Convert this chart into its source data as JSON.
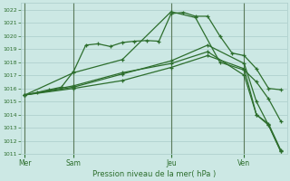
{
  "background_color": "#cce8e4",
  "grid_color": "#aaccca",
  "line_color": "#2d6e2d",
  "line_color2": "#4a8a4a",
  "xlabel": "Pression niveau de la mer( hPa )",
  "ylim": [
    1011,
    1022.5
  ],
  "yticks": [
    1011,
    1012,
    1013,
    1014,
    1015,
    1016,
    1017,
    1018,
    1019,
    1020,
    1021,
    1022
  ],
  "day_labels": [
    "Mer",
    "Sam",
    "Jeu",
    "Ven"
  ],
  "day_positions": [
    0,
    4,
    12,
    18
  ],
  "xlim": [
    -0.3,
    21.5
  ],
  "series": [
    {
      "x": [
        0,
        1,
        2,
        3,
        4,
        5,
        6,
        7,
        8,
        9,
        10,
        11,
        12,
        13,
        14,
        15,
        16,
        17,
        18,
        19,
        20,
        21
      ],
      "y": [
        1015.5,
        1015.7,
        1015.9,
        1016.1,
        1017.3,
        1019.3,
        1019.4,
        1019.2,
        1019.5,
        1019.6,
        1019.65,
        1019.6,
        1021.7,
        1021.8,
        1021.5,
        1021.5,
        1020.0,
        1018.7,
        1018.5,
        1017.5,
        1016.0,
        1015.9
      ]
    },
    {
      "x": [
        0,
        4,
        8,
        12,
        14,
        16,
        18,
        19,
        20,
        21
      ],
      "y": [
        1015.5,
        1017.2,
        1018.2,
        1021.85,
        1021.4,
        1018.0,
        1017.4,
        1016.5,
        1015.2,
        1013.5
      ]
    },
    {
      "x": [
        0,
        4,
        8,
        12,
        15,
        18,
        19,
        20,
        21
      ],
      "y": [
        1015.5,
        1016.0,
        1016.6,
        1017.6,
        1018.5,
        1017.5,
        1014.0,
        1013.2,
        1011.2
      ]
    },
    {
      "x": [
        0,
        4,
        8,
        12,
        15,
        18,
        19,
        20,
        21
      ],
      "y": [
        1015.5,
        1016.1,
        1017.1,
        1018.1,
        1019.3,
        1017.9,
        1015.0,
        1013.2,
        1011.2
      ]
    },
    {
      "x": [
        0,
        4,
        8,
        12,
        15,
        18,
        19,
        20,
        21
      ],
      "y": [
        1015.5,
        1016.2,
        1017.2,
        1017.9,
        1018.8,
        1017.0,
        1014.0,
        1013.3,
        1011.3
      ]
    }
  ]
}
